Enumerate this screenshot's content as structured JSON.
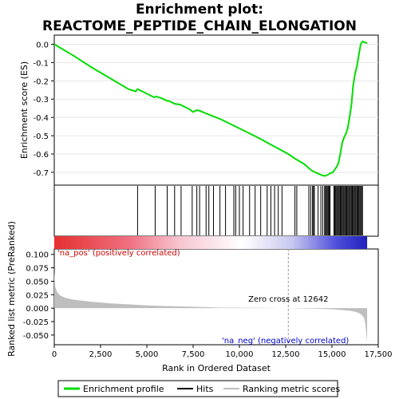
{
  "chart_data": {
    "type": "line",
    "title_lines": [
      "Enrichment plot:",
      "REACTOME_PEPTIDE_CHAIN_ELONGATION"
    ],
    "panels": {
      "enrichment": {
        "ylabel": "Enrichment score (ES)",
        "ylim": [
          -0.77,
          0.05
        ],
        "yticks": [
          "0.0",
          "-0.1",
          "-0.2",
          "-0.3",
          "-0.4",
          "-0.5",
          "-0.6",
          "-0.7"
        ],
        "ytick_values": [
          0.0,
          -0.1,
          -0.2,
          -0.3,
          -0.4,
          -0.5,
          -0.6,
          -0.7
        ],
        "series": [
          {
            "name": "Enrichment profile",
            "color": "#00dd00",
            "x": [
              0,
              1000,
              2000,
              3000,
              4000,
              4400,
              4500,
              4600,
              5000,
              5400,
              5500,
              5800,
              6100,
              6200,
              6500,
              6800,
              7000,
              7300,
              7500,
              7700,
              7900,
              8000,
              8500,
              9000,
              10000,
              11000,
              12000,
              12642,
              13000,
              13500,
              13900,
              14200,
              14450,
              14600,
              14750,
              14900,
              15050,
              15150,
              15250,
              15350,
              15450,
              15550,
              15650,
              15750,
              15850,
              15950,
              16050,
              16150,
              16250,
              16350,
              16450,
              16550,
              16650,
              16900
            ],
            "y": [
              0.0,
              -0.06,
              -0.125,
              -0.185,
              -0.245,
              -0.258,
              -0.245,
              -0.25,
              -0.27,
              -0.29,
              -0.285,
              -0.295,
              -0.31,
              -0.31,
              -0.325,
              -0.33,
              -0.34,
              -0.355,
              -0.37,
              -0.36,
              -0.365,
              -0.37,
              -0.39,
              -0.41,
              -0.46,
              -0.51,
              -0.565,
              -0.6,
              -0.625,
              -0.655,
              -0.69,
              -0.705,
              -0.715,
              -0.72,
              -0.715,
              -0.705,
              -0.7,
              -0.685,
              -0.67,
              -0.65,
              -0.6,
              -0.54,
              -0.51,
              -0.49,
              -0.46,
              -0.4,
              -0.33,
              -0.22,
              -0.16,
              -0.12,
              -0.06,
              0.0,
              0.015,
              0.005
            ]
          }
        ]
      },
      "ranked_metric": {
        "ylabel": "Ranked list metric (PreRanked)",
        "xlabel": "Rank in Ordered Dataset",
        "xlim": [
          0,
          17500
        ],
        "xticks": [
          "0",
          "2,500",
          "5,000",
          "7,500",
          "10,000",
          "12,500",
          "15,000",
          "17,500"
        ],
        "xtick_values": [
          0,
          2500,
          5000,
          7500,
          10000,
          12500,
          15000,
          17500
        ],
        "ylim": [
          -0.068,
          0.11
        ],
        "yticks": [
          "0.100",
          "0.075",
          "0.050",
          "0.025",
          "0.000",
          "-0.025",
          "-0.050"
        ],
        "ytick_values": [
          0.1,
          0.075,
          0.05,
          0.025,
          0.0,
          -0.025,
          -0.05
        ],
        "x": [
          0,
          50,
          150,
          300,
          600,
          1000,
          2000,
          3000,
          4000,
          5000,
          6000,
          7000,
          8000,
          9000,
          10000,
          11000,
          12000,
          12642,
          13000,
          14000,
          15000,
          15500,
          16000,
          16300,
          16500,
          16650,
          16750,
          16800,
          16850,
          16900
        ],
        "y": [
          0.068,
          0.04,
          0.03,
          0.024,
          0.019,
          0.016,
          0.012,
          0.009,
          0.007,
          0.005,
          0.004,
          0.003,
          0.002,
          0.001,
          0.0008,
          0.0005,
          0.0002,
          0.0,
          -0.0003,
          -0.001,
          -0.002,
          -0.0035,
          -0.005,
          -0.007,
          -0.01,
          -0.014,
          -0.02,
          -0.03,
          -0.045,
          -0.063
        ],
        "zero_cross_label": "Zero cross at 12642",
        "zero_cross_x": 12642,
        "pos_label": "'na_pos' (positively correlated)",
        "neg_label": "'na_neg' (negatively correlated)"
      },
      "hits": {
        "positions": [
          4500,
          5450,
          6100,
          6500,
          6850,
          7450,
          7700,
          7850,
          8200,
          8350,
          8600,
          8950,
          9250,
          9700,
          9800,
          10000,
          10200,
          10550,
          10850,
          11150,
          11500,
          11700,
          11900,
          12100,
          12300,
          13000,
          13100,
          13750,
          13850,
          13950,
          14000,
          14050,
          14250,
          14400,
          14500,
          14600,
          14650,
          14700,
          14750,
          14800,
          14850,
          14900,
          15100,
          15150,
          15200,
          15250,
          15300,
          15350,
          15400,
          15450,
          15500,
          15550,
          15600,
          15650,
          15700,
          15750,
          15800,
          15850,
          15900,
          15950,
          16000,
          16050,
          16100,
          16150,
          16200,
          16250,
          16300,
          16350,
          16400,
          16450,
          16500,
          16550,
          16600,
          16650
        ]
      }
    },
    "legend": [
      "Enrichment profile",
      "Hits",
      "Ranking metric scores"
    ],
    "colors": {
      "profile": "#00dd00",
      "hits": "#000000",
      "metric_fill": "#bebebe",
      "pos_label": "#cc0000",
      "neg_label": "#0000cc",
      "zero_cross_line": "#999999"
    }
  }
}
